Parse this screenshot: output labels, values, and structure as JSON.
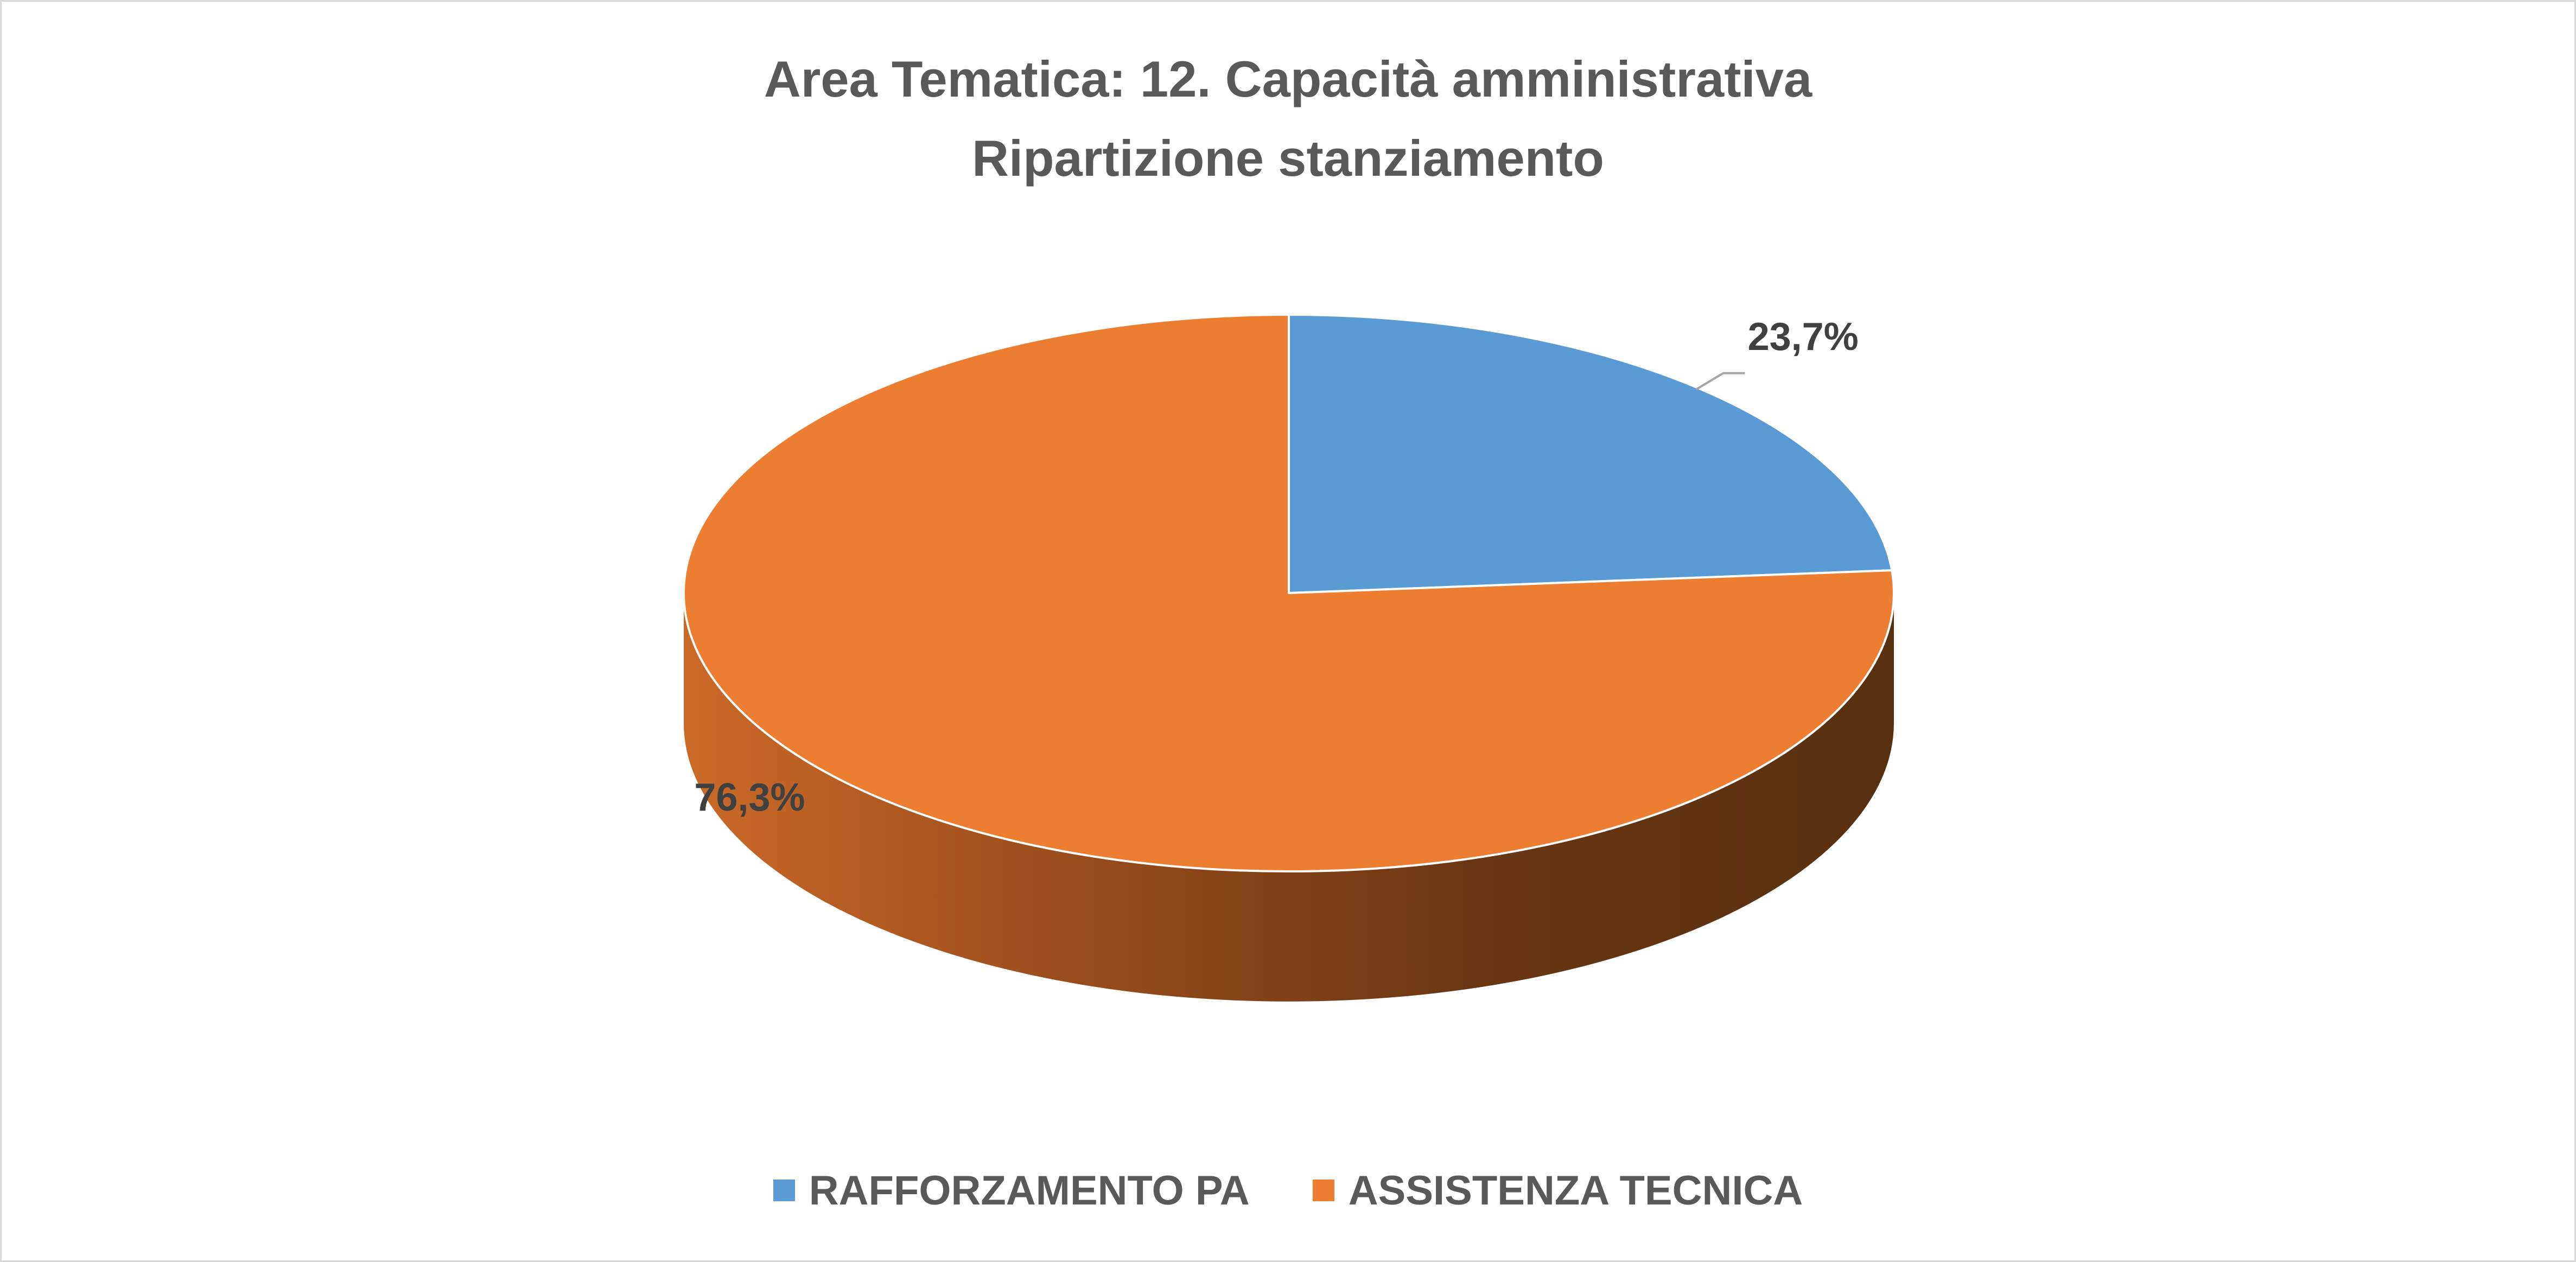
{
  "chart_data": {
    "type": "pie",
    "title": "Area Tematica: 12. Capacità amministrativa",
    "subtitle": "Ripartizione stanziamento",
    "categories": [
      "RAFFORZAMENTO PA",
      "ASSISTENZA TECNICA"
    ],
    "values": [
      23.7,
      76.3
    ],
    "data_labels": [
      "23,7%",
      "76,3%"
    ],
    "colors": [
      "#5b9bd5",
      "#ed7d31"
    ],
    "legend_position": "bottom",
    "style": "3d"
  }
}
